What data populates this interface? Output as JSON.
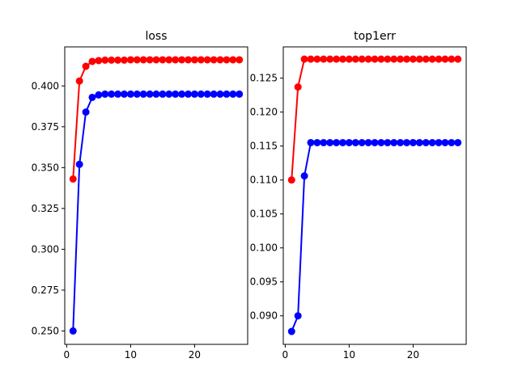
{
  "chart_data": [
    {
      "type": "line",
      "title": "loss",
      "xlabel": "",
      "ylabel": "",
      "xlim": [
        -0.3,
        28.3
      ],
      "ylim": [
        0.2418,
        0.4239
      ],
      "xticks": [
        0,
        10,
        20
      ],
      "yticks": [
        0.25,
        0.275,
        0.3,
        0.325,
        0.35,
        0.375,
        0.4
      ],
      "ytick_labels": [
        "0.250",
        "0.275",
        "0.300",
        "0.325",
        "0.350",
        "0.375",
        "0.400"
      ],
      "grid": false,
      "x": [
        1,
        2,
        3,
        4,
        5,
        6,
        7,
        8,
        9,
        10,
        11,
        12,
        13,
        14,
        15,
        16,
        17,
        18,
        19,
        20,
        21,
        22,
        23,
        24,
        25,
        26,
        27
      ],
      "series": [
        {
          "color": "#ff0000",
          "marker": "circle",
          "values": [
            0.343,
            0.403,
            0.412,
            0.415,
            0.4155,
            0.4158,
            0.4158,
            0.4158,
            0.4158,
            0.416,
            0.416,
            0.416,
            0.416,
            0.416,
            0.416,
            0.416,
            0.416,
            0.416,
            0.416,
            0.416,
            0.416,
            0.416,
            0.416,
            0.416,
            0.416,
            0.416,
            0.416
          ]
        },
        {
          "color": "#0000ff",
          "marker": "circle",
          "values": [
            0.25,
            0.352,
            0.384,
            0.393,
            0.3945,
            0.395,
            0.395,
            0.395,
            0.395,
            0.395,
            0.395,
            0.395,
            0.395,
            0.395,
            0.395,
            0.395,
            0.395,
            0.395,
            0.395,
            0.395,
            0.395,
            0.395,
            0.395,
            0.395,
            0.395,
            0.395,
            0.395
          ]
        }
      ]
    },
    {
      "type": "line",
      "title": "top1err",
      "xlabel": "",
      "ylabel": "",
      "xlim": [
        -0.3,
        28.3
      ],
      "ylim": [
        0.0858,
        0.1296
      ],
      "xticks": [
        0,
        10,
        20
      ],
      "yticks": [
        0.09,
        0.095,
        0.1,
        0.105,
        0.11,
        0.115,
        0.12,
        0.125
      ],
      "ytick_labels": [
        "0.090",
        "0.095",
        "0.100",
        "0.105",
        "0.110",
        "0.115",
        "0.120",
        "0.125"
      ],
      "grid": false,
      "x": [
        1,
        2,
        3,
        4,
        5,
        6,
        7,
        8,
        9,
        10,
        11,
        12,
        13,
        14,
        15,
        16,
        17,
        18,
        19,
        20,
        21,
        22,
        23,
        24,
        25,
        26,
        27
      ],
      "series": [
        {
          "color": "#ff0000",
          "marker": "circle",
          "values": [
            0.11,
            0.1237,
            0.1278,
            0.1278,
            0.1278,
            0.1278,
            0.1278,
            0.1278,
            0.1278,
            0.1278,
            0.1278,
            0.1278,
            0.1278,
            0.1278,
            0.1278,
            0.1278,
            0.1278,
            0.1278,
            0.1278,
            0.1278,
            0.1278,
            0.1278,
            0.1278,
            0.1278,
            0.1278,
            0.1278,
            0.1278
          ]
        },
        {
          "color": "#0000ff",
          "marker": "circle",
          "values": [
            0.0877,
            0.09,
            0.1106,
            0.1155,
            0.1155,
            0.1155,
            0.1155,
            0.1155,
            0.1155,
            0.1155,
            0.1155,
            0.1155,
            0.1155,
            0.1155,
            0.1155,
            0.1155,
            0.1155,
            0.1155,
            0.1155,
            0.1155,
            0.1155,
            0.1155,
            0.1155,
            0.1155,
            0.1155,
            0.1155,
            0.1155
          ]
        }
      ]
    }
  ]
}
